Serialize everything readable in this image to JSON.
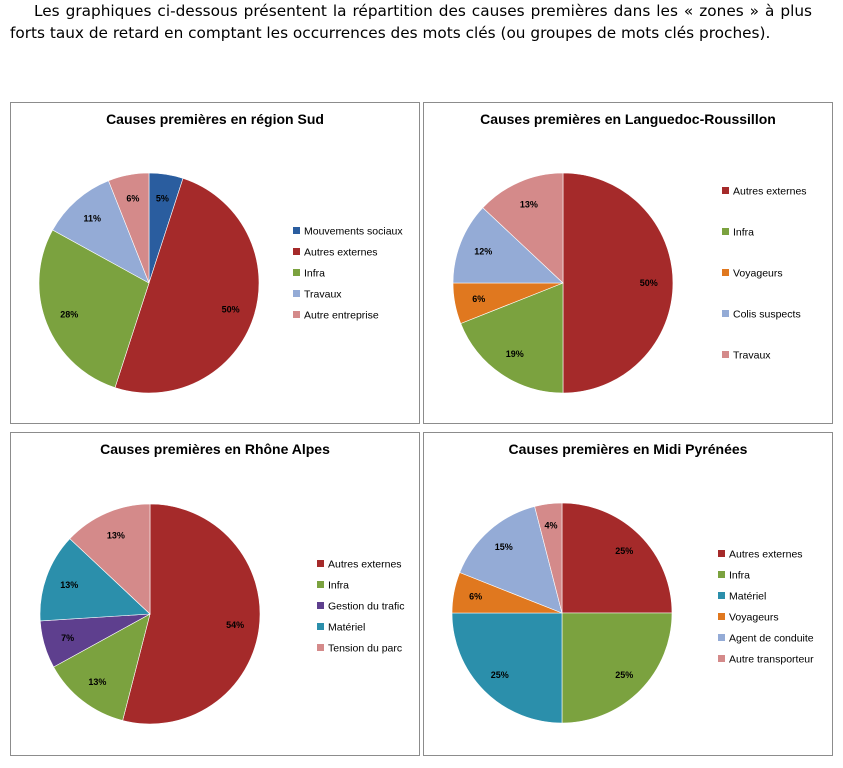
{
  "intro_text": "Les graphiques ci-dessous présentent la répartition des causes premières dans les « zones » à plus forts taux de retard en comptant les occurrences des mots clés (ou groupes de mots clés proches).",
  "chart_data": [
    {
      "type": "pie",
      "title": "Causes premières en région Sud",
      "legend_position": "right",
      "slices": [
        {
          "label": "Mouvements sociaux",
          "value": 5,
          "display": "5%",
          "color": "#2a5d9f"
        },
        {
          "label": "Autres externes",
          "value": 50,
          "display": "50%",
          "color": "#a52a2a"
        },
        {
          "label": "Infra",
          "value": 28,
          "display": "28%",
          "color": "#7ba23f"
        },
        {
          "label": "Travaux",
          "value": 11,
          "display": "11%",
          "color": "#94abd6"
        },
        {
          "label": "Autre entreprise",
          "value": 6,
          "display": "6%",
          "color": "#d48a8a"
        }
      ]
    },
    {
      "type": "pie",
      "title": "Causes premières en Languedoc-Roussillon",
      "legend_position": "right",
      "slices": [
        {
          "label": "Autres externes",
          "value": 50,
          "display": "50%",
          "color": "#a52a2a"
        },
        {
          "label": "Infra",
          "value": 19,
          "display": "19%",
          "color": "#7ba23f"
        },
        {
          "label": "Voyageurs",
          "value": 6,
          "display": "6%",
          "color": "#e0781f"
        },
        {
          "label": "Colis suspects",
          "value": 12,
          "display": "12%",
          "color": "#94abd6"
        },
        {
          "label": "Travaux",
          "value": 13,
          "display": "13%",
          "color": "#d48a8a"
        }
      ]
    },
    {
      "type": "pie",
      "title": "Causes premières en Rhône Alpes",
      "legend_position": "right",
      "slices": [
        {
          "label": "Autres externes",
          "value": 54,
          "display": "54%",
          "color": "#a52a2a"
        },
        {
          "label": "Infra",
          "value": 13,
          "display": "13%",
          "color": "#7ba23f"
        },
        {
          "label": "Gestion du trafic",
          "value": 7,
          "display": "7%",
          "color": "#5e3f8e"
        },
        {
          "label": "Matériel",
          "value": 13,
          "display": "13%",
          "color": "#2b8fab"
        },
        {
          "label": "Tension du parc",
          "value": 13,
          "display": "13%",
          "color": "#d48a8a"
        }
      ]
    },
    {
      "type": "pie",
      "title": "Causes premières en Midi Pyrénées",
      "legend_position": "right",
      "slices": [
        {
          "label": "Autres externes",
          "value": 25,
          "display": "25%",
          "color": "#a52a2a"
        },
        {
          "label": "Infra",
          "value": 25,
          "display": "25%",
          "color": "#7ba23f"
        },
        {
          "label": "Matériel",
          "value": 25,
          "display": "25%",
          "color": "#2b8fab"
        },
        {
          "label": "Voyageurs",
          "value": 6,
          "display": "6%",
          "color": "#e0781f"
        },
        {
          "label": "Agent de conduite",
          "value": 15,
          "display": "15%",
          "color": "#94abd6"
        },
        {
          "label": "Autre transporteur",
          "value": 4,
          "display": "4%",
          "color": "#d48a8a"
        }
      ]
    }
  ]
}
